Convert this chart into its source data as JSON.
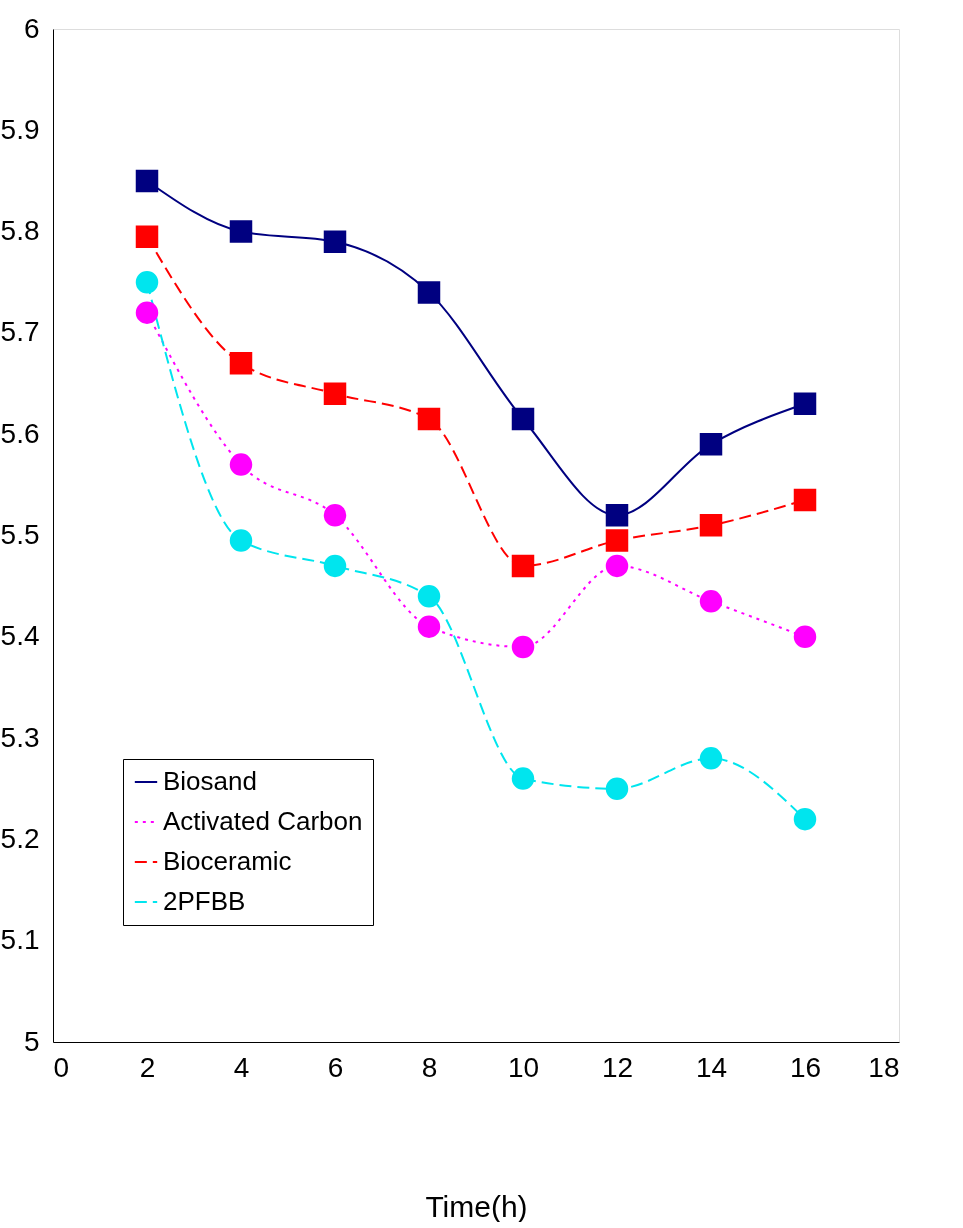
{
  "chart_data": {
    "type": "line",
    "xlabel": "Time(h)",
    "x": [
      2,
      4,
      6,
      8,
      10,
      12,
      14,
      16
    ],
    "series": [
      {
        "name": "Biosand",
        "color": "#000080",
        "marker": "square",
        "line_style": "solid",
        "values": [
          5.85,
          5.8,
          5.79,
          5.74,
          5.615,
          5.52,
          5.59,
          5.63
        ]
      },
      {
        "name": "Activated Carbon",
        "color": "#ff00ff",
        "marker": "circle",
        "line_style": "dotted",
        "values": [
          5.72,
          5.57,
          5.52,
          5.41,
          5.39,
          5.47,
          5.435,
          5.4
        ]
      },
      {
        "name": "Bioceramic",
        "color": "#ff0000",
        "marker": "square",
        "line_style": "dashed",
        "values": [
          5.795,
          5.67,
          5.64,
          5.615,
          5.47,
          5.495,
          5.51,
          5.535
        ]
      },
      {
        "name": "2PFBB",
        "color": "#00e5ee",
        "marker": "circle",
        "line_style": "dashed",
        "values": [
          5.75,
          5.495,
          5.47,
          5.44,
          5.26,
          5.25,
          5.28,
          5.22
        ]
      }
    ],
    "xlim": [
      0,
      18
    ],
    "xticks": [
      0,
      2,
      4,
      6,
      8,
      10,
      12,
      14,
      16,
      18
    ],
    "ylim": [
      5,
      6
    ],
    "yticks": [
      5,
      5.1,
      5.2,
      5.3,
      5.4,
      5.5,
      5.6,
      5.7,
      5.8,
      5.9,
      6
    ],
    "grid": false,
    "legend": "bottom left"
  }
}
